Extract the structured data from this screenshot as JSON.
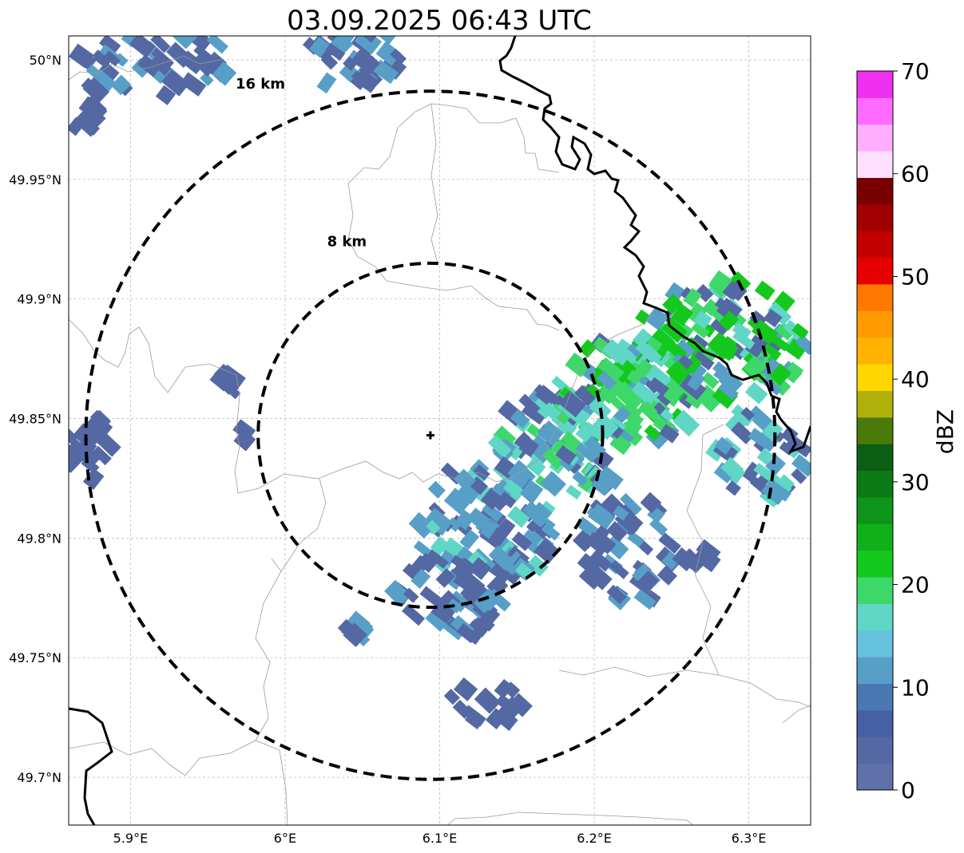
{
  "title": "03.09.2025 06:43 UTC",
  "map": {
    "lon_ticks": [
      {
        "value": 5.9,
        "label": "5.9°E"
      },
      {
        "value": 6.0,
        "label": "6°E"
      },
      {
        "value": 6.1,
        "label": "6.1°E"
      },
      {
        "value": 6.2,
        "label": "6.2°E"
      },
      {
        "value": 6.3,
        "label": "6.3°E"
      }
    ],
    "lat_ticks": [
      {
        "value": 50.0,
        "label": "50°N"
      },
      {
        "value": 49.95,
        "label": "49.95°N"
      },
      {
        "value": 49.9,
        "label": "49.9°N"
      },
      {
        "value": 49.85,
        "label": "49.85°N"
      },
      {
        "value": 49.8,
        "label": "49.8°N"
      },
      {
        "value": 49.75,
        "label": "49.75°N"
      },
      {
        "value": 49.7,
        "label": "49.7°N"
      }
    ],
    "lon_range": [
      5.86,
      6.34
    ],
    "lat_range": [
      49.68,
      50.01
    ],
    "gridlines": true,
    "radar_site": {
      "lon": 6.094,
      "lat": 49.843
    },
    "range_rings": [
      {
        "label": "8 km",
        "radius_km": 8,
        "label_lon": 6.04,
        "label_lat": 49.922
      },
      {
        "label": "16 km",
        "radius_km": 16,
        "label_lon": 5.984,
        "label_lat": 49.988
      }
    ]
  },
  "colorbar": {
    "label": "dBZ",
    "min": 0,
    "max": 70,
    "step": 2.5,
    "tick_values": [
      0,
      10,
      20,
      30,
      40,
      50,
      60,
      70
    ],
    "tick_labels": [
      "0",
      "10",
      "20",
      "30",
      "40",
      "50",
      "60",
      "70"
    ],
    "colors": [
      "#6070a8",
      "#5468a4",
      "#4660a6",
      "#4a78b2",
      "#589fc8",
      "#66c2de",
      "#60d6c6",
      "#3ed86a",
      "#14c81e",
      "#10b01a",
      "#0d941a",
      "#0c7a16",
      "#0b5e12",
      "#4a7a0a",
      "#b0b00a",
      "#ffd600",
      "#ffb300",
      "#ff9a00",
      "#ff7800",
      "#e60000",
      "#c20000",
      "#a00000",
      "#7a0000",
      "#ffdfff",
      "#ffadff",
      "#ff6aff",
      "#f030f0"
    ]
  },
  "echo_legend": {
    "weak": "#5468a4",
    "light": "#589fc8",
    "medium": "#60d6c6",
    "moderate": "#3ed86a",
    "strong": "#14c81e"
  }
}
